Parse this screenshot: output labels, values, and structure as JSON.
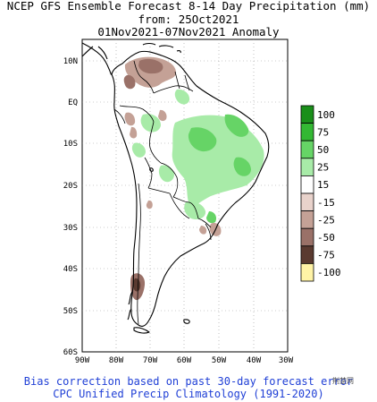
{
  "title": {
    "line1": "NCEP GFS Ensemble Forecast 8-14 Day Precipitation (mm)",
    "line2": "from: 25Oct2021",
    "line3": "01Nov2021-07Nov2021 Anomaly"
  },
  "axes": {
    "lat_labels": [
      "10N",
      "EQ",
      "10S",
      "20S",
      "30S",
      "40S",
      "50S",
      "60S"
    ],
    "lon_labels": [
      "90W",
      "80W",
      "70W",
      "60W",
      "50W",
      "40W",
      "30W"
    ]
  },
  "legend": {
    "items": [
      {
        "label": "100",
        "color": "#1a8f1a"
      },
      {
        "label": "75",
        "color": "#33b833"
      },
      {
        "label": "50",
        "color": "#66d466"
      },
      {
        "label": "25",
        "color": "#a8eba8"
      },
      {
        "label": "15",
        "color": "#ffffff"
      },
      {
        "label": "-15",
        "color": "#e8d2cb"
      },
      {
        "label": "-25",
        "color": "#c4a196"
      },
      {
        "label": "-50",
        "color": "#9a7168"
      },
      {
        "label": "-75",
        "color": "#5a3a30"
      },
      {
        "label": "-100",
        "color": "#fff3a6"
      }
    ]
  },
  "footer": {
    "line1": "Bias correction based on past 30-day forecast error",
    "line2": "CPC Unified Precip Climatology (1991-2020)"
  },
  "watermark": "荆楚网"
}
